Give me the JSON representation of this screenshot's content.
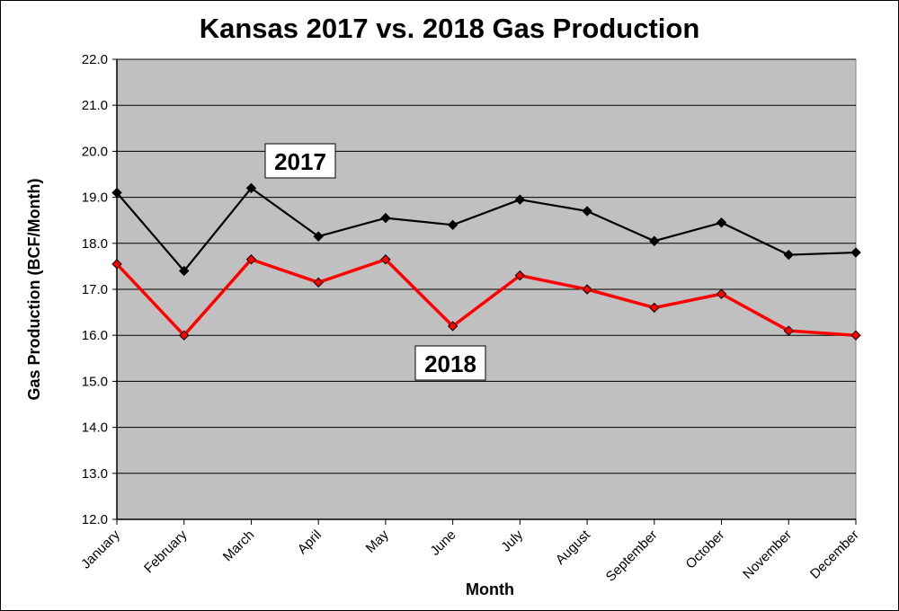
{
  "chart_data": {
    "type": "line",
    "title": "Kansas 2017 vs. 2018 Gas Production",
    "xlabel": "Month",
    "ylabel": "Gas Production (BCF/Month)",
    "categories": [
      "January",
      "February",
      "March",
      "April",
      "May",
      "June",
      "July",
      "August",
      "September",
      "October",
      "November",
      "December"
    ],
    "ylim": [
      12.0,
      22.0
    ],
    "ytick_labels": [
      "12.0",
      "13.0",
      "14.0",
      "15.0",
      "16.0",
      "17.0",
      "18.0",
      "19.0",
      "20.0",
      "21.0",
      "22.0"
    ],
    "grid": true,
    "legend": "none",
    "plot_background": "#C0C0C0",
    "series": [
      {
        "name": "2017",
        "color": "#000000",
        "values": [
          19.1,
          17.4,
          19.2,
          18.15,
          18.55,
          18.4,
          18.95,
          18.7,
          18.05,
          18.45,
          17.75,
          17.8
        ]
      },
      {
        "name": "2018",
        "color": "#FF0000",
        "values": [
          17.55,
          16.0,
          17.65,
          17.15,
          17.65,
          16.2,
          17.3,
          17.0,
          16.6,
          16.9,
          16.1,
          16.0
        ]
      }
    ]
  }
}
